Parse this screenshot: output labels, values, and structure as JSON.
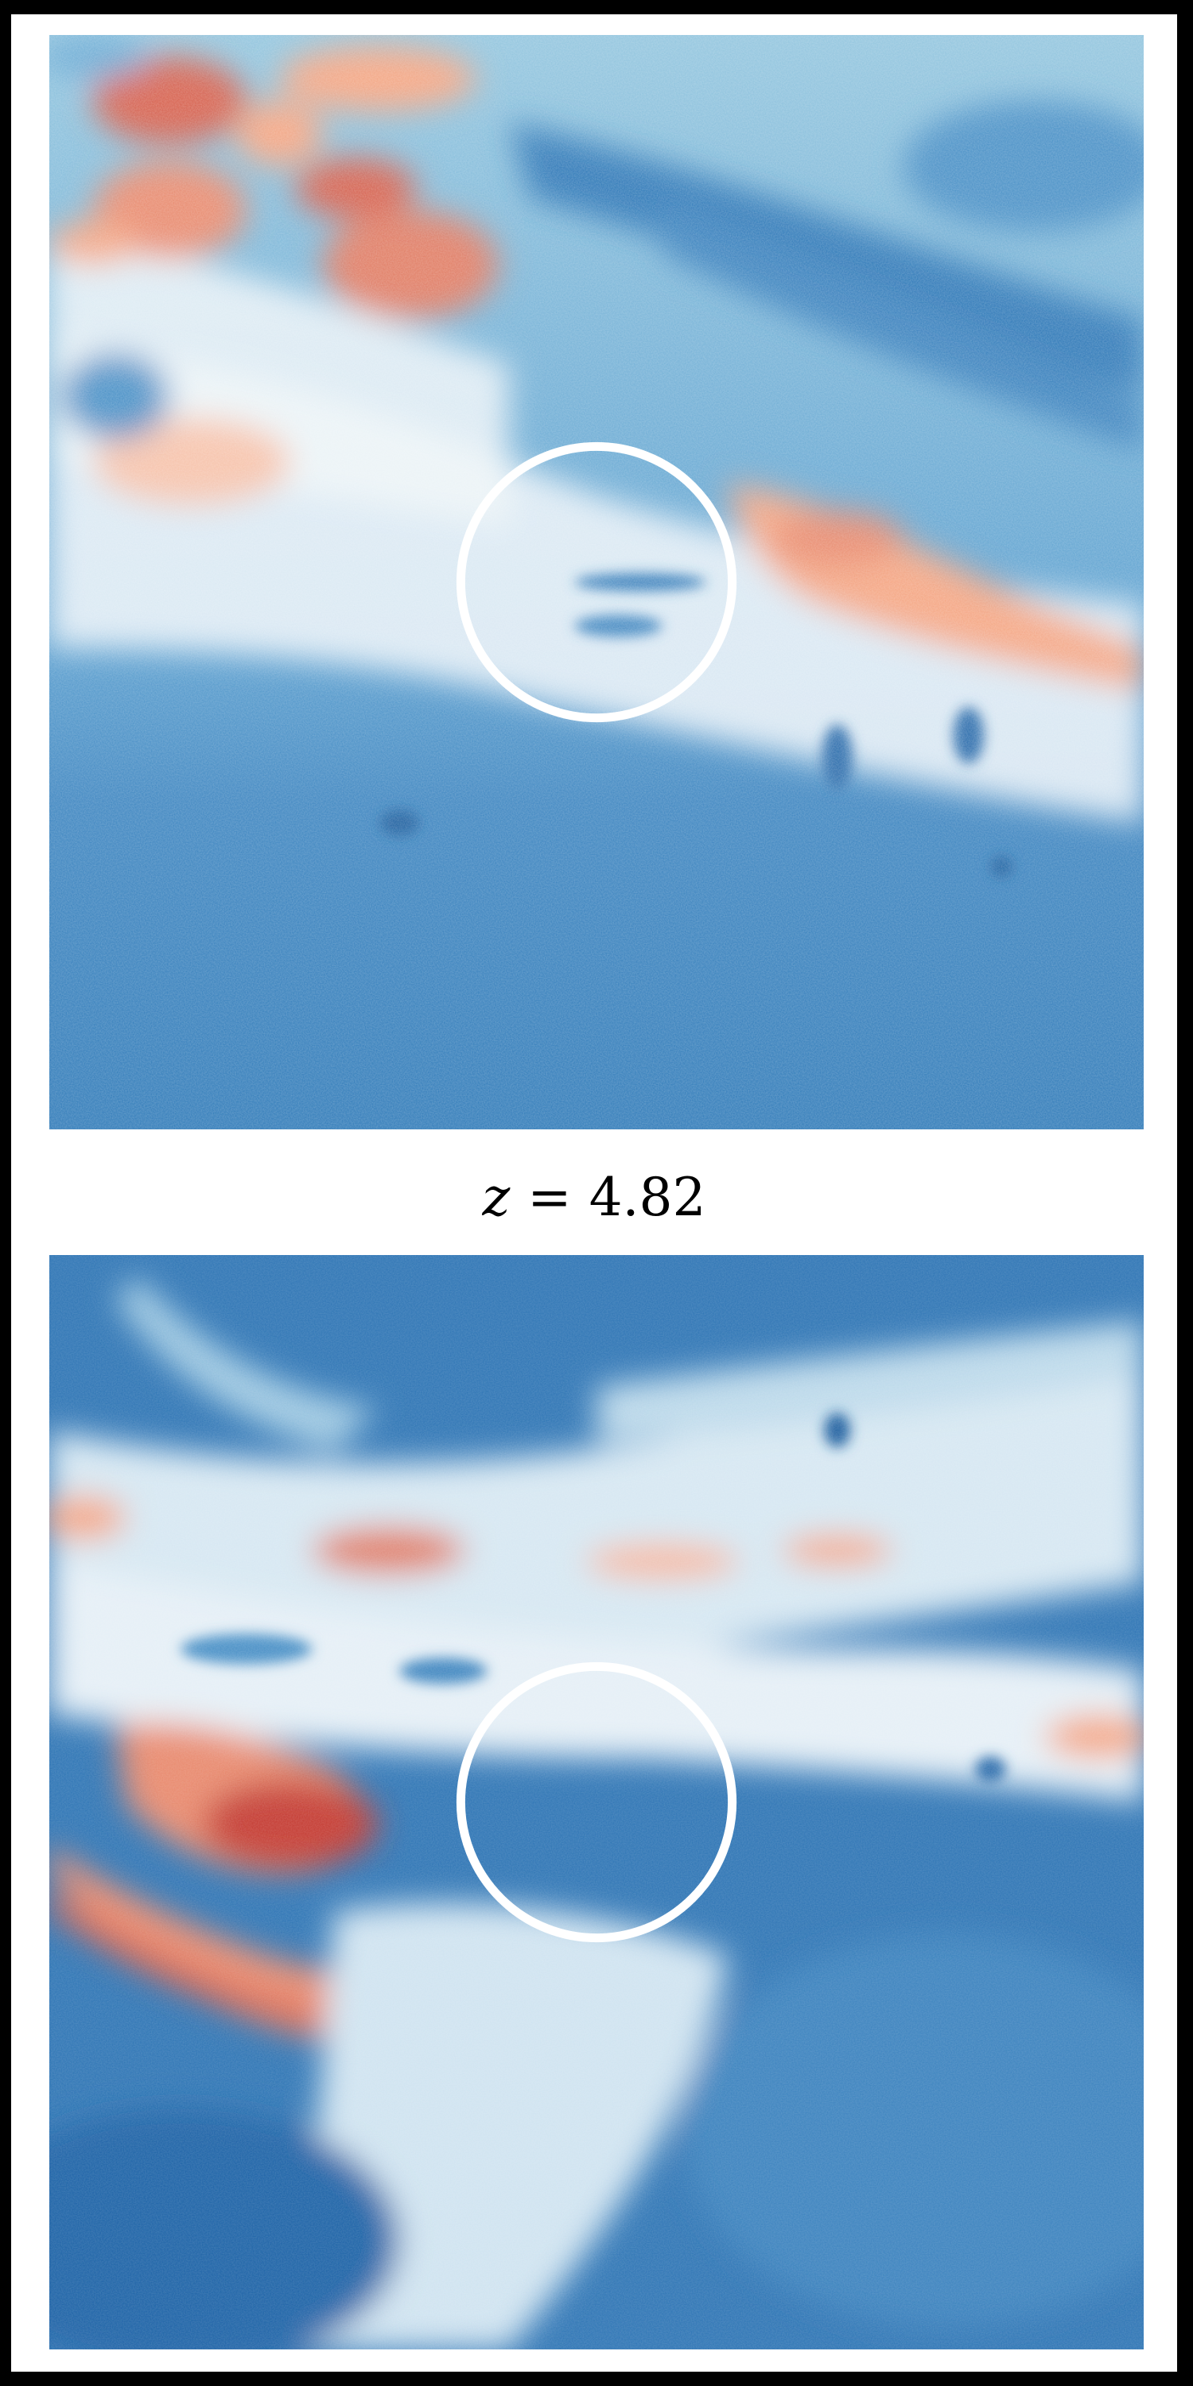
{
  "caption": {
    "variable": "z",
    "equals": "=",
    "value": "4.82"
  },
  "colors": {
    "background_border": "#000000",
    "canvas": "#ffffff",
    "deep_blue": "#2166ac",
    "mid_blue": "#4393c3",
    "light_blue": "#92c5de",
    "pale": "#f7f7f7",
    "light_red": "#f4a582",
    "mid_red": "#d6604d",
    "deep_red": "#b2182b",
    "circle_marker": "#ffffff"
  },
  "colormap": "RdBu_r"
}
